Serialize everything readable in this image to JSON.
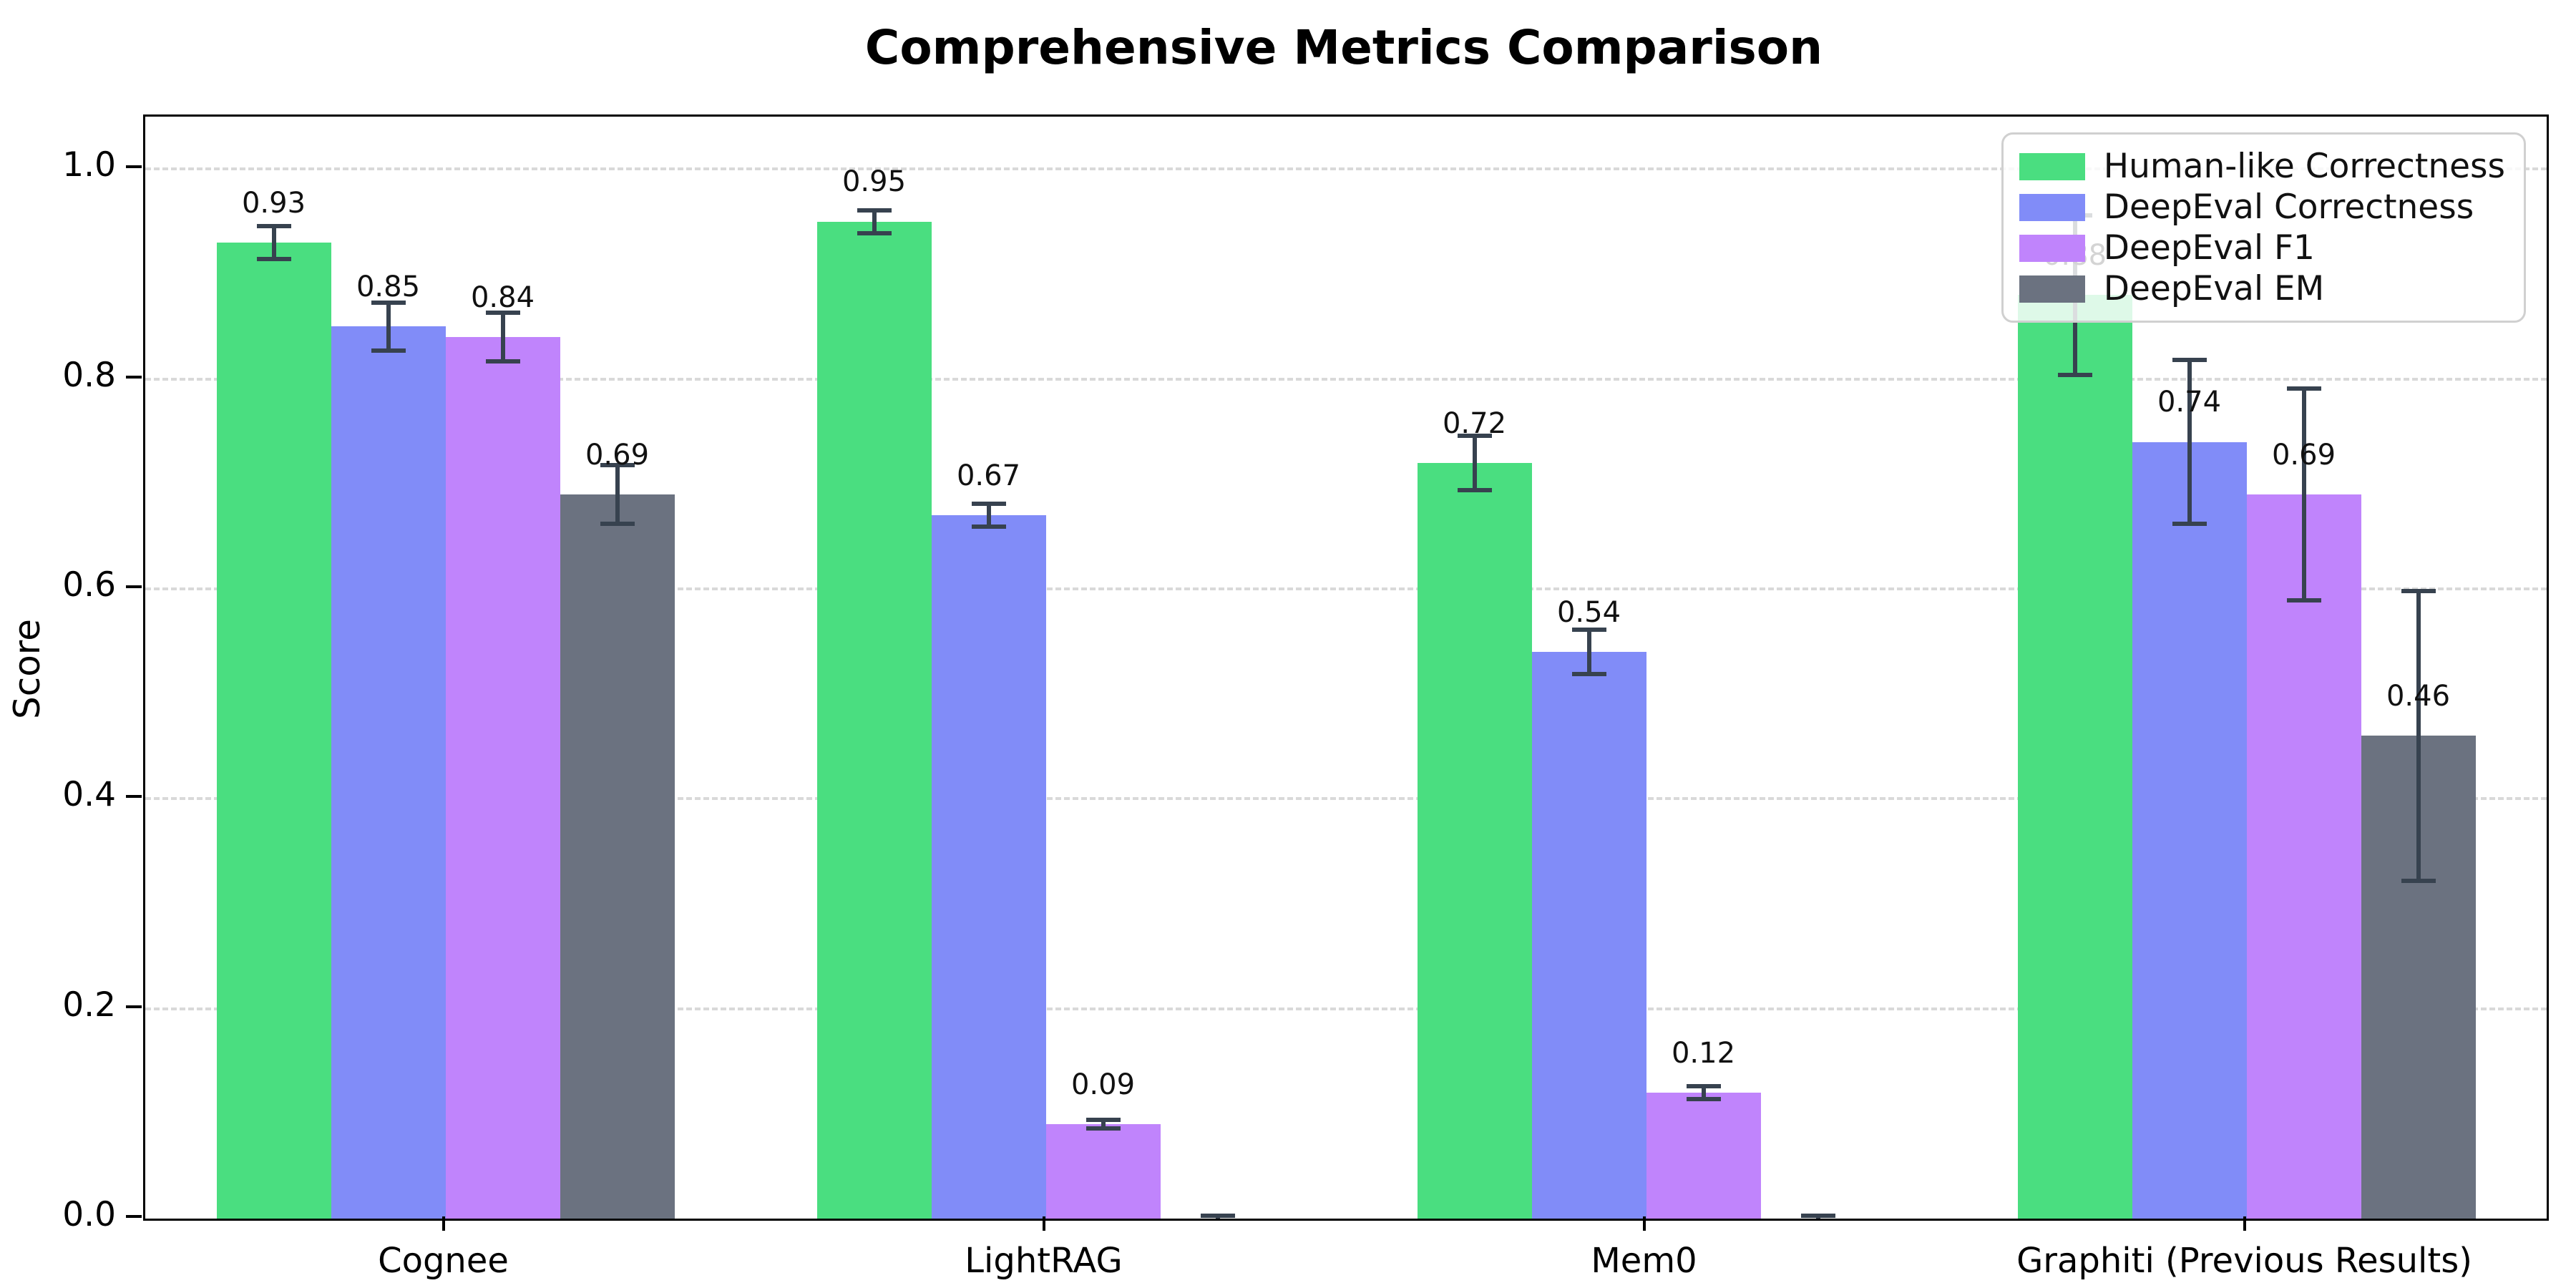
{
  "figure": {
    "background": "#ffffff"
  },
  "chart_data": {
    "type": "bar",
    "title": "Comprehensive Metrics Comparison",
    "xlabel": "",
    "ylabel": "Score",
    "categories": [
      "Cognee",
      "LightRAG",
      "Mem0",
      "Graphiti (Previous Results)"
    ],
    "series": [
      {
        "name": "Human-like Correctness",
        "color": "#4ade80",
        "values": [
          0.93,
          0.95,
          0.72,
          0.88
        ],
        "errors": [
          0.018,
          0.013,
          0.028,
          0.078
        ],
        "value_labels": [
          "0.93",
          "0.95",
          "0.72",
          "0.88"
        ]
      },
      {
        "name": "DeepEval Correctness",
        "color": "#818cf8",
        "values": [
          0.85,
          0.67,
          0.54,
          0.74
        ],
        "errors": [
          0.025,
          0.013,
          0.023,
          0.08
        ],
        "value_labels": [
          "0.85",
          "0.67",
          "0.54",
          "0.74"
        ]
      },
      {
        "name": "DeepEval F1",
        "color": "#c084fc",
        "values": [
          0.84,
          0.09,
          0.12,
          0.69
        ],
        "errors": [
          0.025,
          0.006,
          0.008,
          0.103
        ],
        "value_labels": [
          "0.84",
          "0.09",
          "0.12",
          "0.69"
        ]
      },
      {
        "name": "DeepEval EM",
        "color": "#6b7280",
        "values": [
          0.69,
          0.0,
          0.0,
          0.46
        ],
        "errors": [
          0.03,
          0.005,
          0.005,
          0.14
        ],
        "value_labels": [
          "0.69",
          "",
          "",
          "0.46"
        ]
      }
    ],
    "ylim": [
      0,
      1.05
    ],
    "yticks": [
      0.0,
      0.2,
      0.4,
      0.6,
      0.8,
      1.0
    ],
    "ytick_labels": [
      "0.0",
      "0.2",
      "0.4",
      "0.6",
      "0.8",
      "1.0"
    ],
    "grid": {
      "axis": "y",
      "style": "dashed",
      "color": "#d9d9d9"
    },
    "error_bar_color": "#37424f",
    "legend": {
      "position": "upper right",
      "entries": [
        "Human-like Correctness",
        "DeepEval Correctness",
        "DeepEval F1",
        "DeepEval EM"
      ]
    }
  }
}
